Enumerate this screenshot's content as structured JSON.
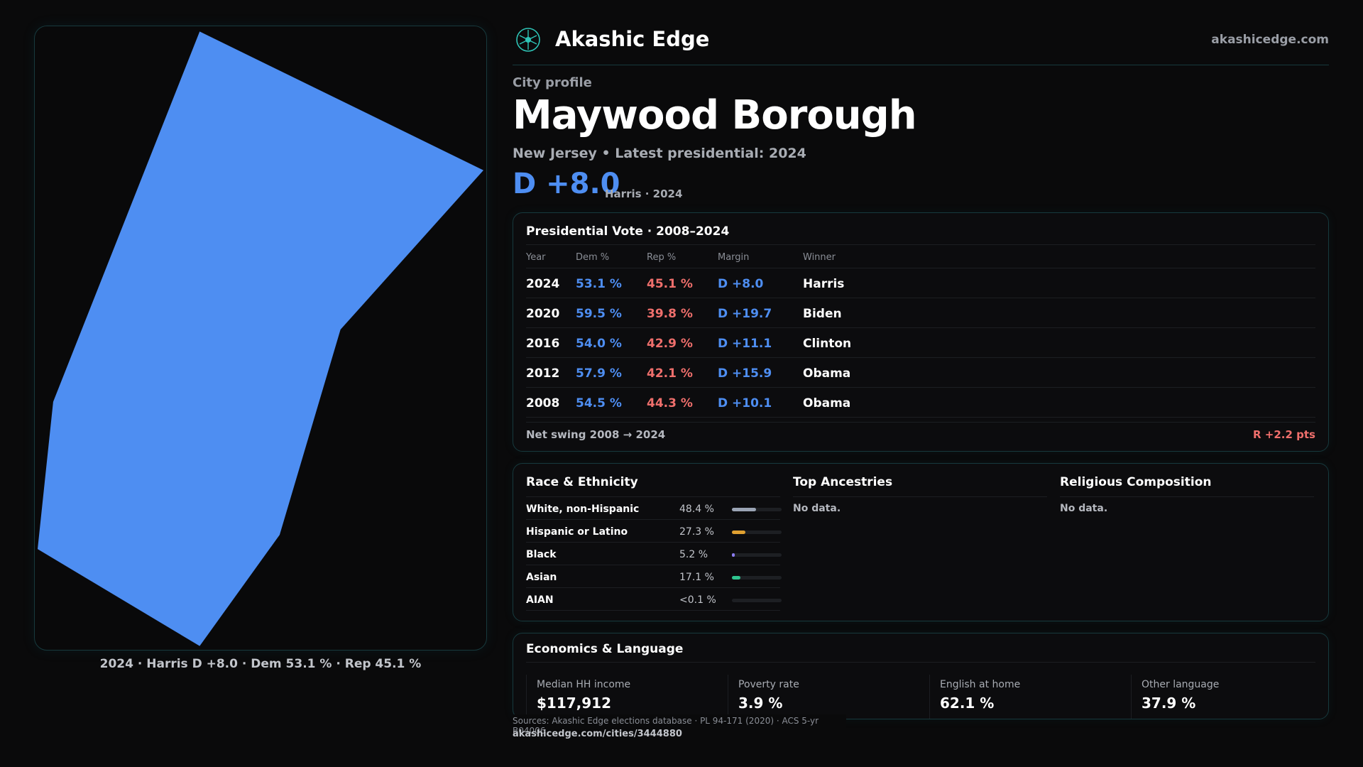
{
  "brand": {
    "name": "Akashic Edge",
    "url": "akashicedge.com",
    "logo_icon": "compass-logo-icon",
    "accent": "#2ec4b6"
  },
  "map": {
    "fill": "#4e8ef2",
    "caption": "2024 · Harris D +8.0 · Dem 53.1 % · Rep 45.1 %"
  },
  "header": {
    "eyebrow": "City profile",
    "city": "Maywood Borough",
    "subline": "New Jersey • Latest presidential: 2024",
    "margin": "D +8.0",
    "margin_note": "Harris · 2024"
  },
  "vote": {
    "title": "Presidential Vote · 2008–2024",
    "columns": {
      "year": "Year",
      "dem": "Dem %",
      "rep": "Rep %",
      "margin": "Margin",
      "winner": "Winner"
    },
    "rows": [
      {
        "year": "2024",
        "dem": "53.1 %",
        "rep": "45.1 %",
        "margin": "D +8.0",
        "winner": "Harris"
      },
      {
        "year": "2020",
        "dem": "59.5 %",
        "rep": "39.8 %",
        "margin": "D +19.7",
        "winner": "Biden"
      },
      {
        "year": "2016",
        "dem": "54.0 %",
        "rep": "42.9 %",
        "margin": "D +11.1",
        "winner": "Clinton"
      },
      {
        "year": "2012",
        "dem": "57.9 %",
        "rep": "42.1 %",
        "margin": "D +15.9",
        "winner": "Obama"
      },
      {
        "year": "2008",
        "dem": "54.5 %",
        "rep": "44.3 %",
        "margin": "D +10.1",
        "winner": "Obama"
      }
    ],
    "swing_label": "Net swing 2008 → 2024",
    "swing_value": "R +2.2 pts",
    "dem_color": "#4e8ef2",
    "rep_color": "#ef6f6c"
  },
  "demographics": {
    "race": {
      "title": "Race & Ethnicity",
      "rows": [
        {
          "name": "White, non-Hispanic",
          "pct": "48.4 %",
          "share": 0.484,
          "color": "#9aa4b4"
        },
        {
          "name": "Hispanic or Latino",
          "pct": "27.3 %",
          "share": 0.273,
          "color": "#e0a030"
        },
        {
          "name": "Black",
          "pct": "5.2 %",
          "share": 0.052,
          "color": "#8b7cf0"
        },
        {
          "name": "Asian",
          "pct": "17.1 %",
          "share": 0.171,
          "color": "#2fc48f"
        },
        {
          "name": "AIAN",
          "pct": "<0.1 %",
          "share": 0.0,
          "color": "#9aa4b4"
        }
      ]
    },
    "ancestries": {
      "title": "Top Ancestries",
      "empty": "No data."
    },
    "religion": {
      "title": "Religious Composition",
      "empty": "No data."
    }
  },
  "economics": {
    "title": "Economics & Language",
    "stats": [
      {
        "label": "Median HH income",
        "value": "$117,912"
      },
      {
        "label": "Poverty rate",
        "value": "3.9 %"
      },
      {
        "label": "English at home",
        "value": "62.1 %"
      },
      {
        "label": "Other language",
        "value": "37.9 %"
      }
    ]
  },
  "footer": {
    "sources": "Sources: Akashic Edge elections database · PL 94-171 (2020) · ACS 5-yr B04006",
    "url": "akashicedge.com/cities/3444880"
  }
}
